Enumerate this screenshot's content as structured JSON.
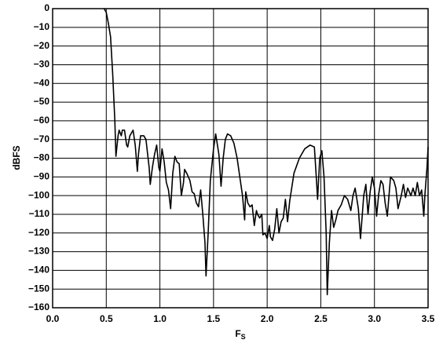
{
  "chart_data": {
    "type": "line",
    "y_label": "dBFS",
    "x_label": {
      "main": "F",
      "sub": "S"
    },
    "color": "#000000",
    "grid": true,
    "xlim": [
      0,
      3.5
    ],
    "ylim": [
      -160,
      0
    ],
    "xticks": [
      {
        "value": 0,
        "label": "0.0"
      },
      0.5,
      {
        "value": 1,
        "label": "1.0"
      },
      1.5,
      {
        "value": 2,
        "label": "2.0"
      },
      2.5,
      {
        "value": 3,
        "label": "3.0"
      },
      3.5
    ],
    "yticks": [
      0,
      {
        "value": -10,
        "label": "−10"
      },
      {
        "value": -20,
        "label": "−20"
      },
      {
        "value": -30,
        "label": "−30"
      },
      {
        "value": -40,
        "label": "−40"
      },
      {
        "value": -50,
        "label": "−50"
      },
      {
        "value": -60,
        "label": "−60"
      },
      {
        "value": -70,
        "label": "−70"
      },
      {
        "value": -80,
        "label": "−80"
      },
      {
        "value": -90,
        "label": "−90"
      },
      {
        "value": -100,
        "label": "−100"
      },
      {
        "value": -110,
        "label": "−110"
      },
      {
        "value": -120,
        "label": "−120"
      },
      {
        "value": -130,
        "label": "−130"
      },
      {
        "value": -140,
        "label": "−140"
      },
      {
        "value": -150,
        "label": "−150"
      },
      {
        "value": -160,
        "label": "−160"
      }
    ],
    "x": [
      0.48,
      0.5,
      0.52,
      0.54,
      0.56,
      0.58,
      0.59,
      0.61,
      0.62,
      0.64,
      0.65,
      0.67,
      0.69,
      0.7,
      0.72,
      0.75,
      0.77,
      0.79,
      0.8,
      0.82,
      0.85,
      0.87,
      0.9,
      0.91,
      0.93,
      0.95,
      0.97,
      0.99,
      1.0,
      1.02,
      1.04,
      1.06,
      1.08,
      1.1,
      1.12,
      1.14,
      1.16,
      1.18,
      1.2,
      1.22,
      1.23,
      1.25,
      1.28,
      1.3,
      1.32,
      1.34,
      1.36,
      1.38,
      1.4,
      1.42,
      1.43,
      1.45,
      1.47,
      1.5,
      1.52,
      1.55,
      1.57,
      1.59,
      1.61,
      1.63,
      1.66,
      1.69,
      1.72,
      1.75,
      1.77,
      1.79,
      1.8,
      1.82,
      1.84,
      1.86,
      1.88,
      1.9,
      1.91,
      1.93,
      1.95,
      1.96,
      1.98,
      2.0,
      2.02,
      2.03,
      2.05,
      2.07,
      2.09,
      2.11,
      2.13,
      2.15,
      2.17,
      2.19,
      2.21,
      2.25,
      2.3,
      2.35,
      2.4,
      2.44,
      2.46,
      2.47,
      2.49,
      2.51,
      2.53,
      2.55,
      2.56,
      2.58,
      2.6,
      2.62,
      2.64,
      2.66,
      2.69,
      2.72,
      2.75,
      2.78,
      2.8,
      2.82,
      2.85,
      2.87,
      2.9,
      2.92,
      2.94,
      2.96,
      2.98,
      3.0,
      3.02,
      3.04,
      3.06,
      3.08,
      3.1,
      3.12,
      3.15,
      3.18,
      3.2,
      3.22,
      3.25,
      3.27,
      3.29,
      3.31,
      3.34,
      3.36,
      3.38,
      3.4,
      3.42,
      3.44,
      3.46,
      3.47,
      3.49,
      3.5
    ],
    "values": [
      0,
      -2,
      -8,
      -15,
      -35,
      -60,
      -79,
      -68,
      -65,
      -68,
      -65,
      -65,
      -73,
      -74,
      -68,
      -65,
      -73,
      -87,
      -78,
      -68,
      -68,
      -70,
      -85,
      -94,
      -85,
      -78,
      -73,
      -85,
      -87,
      -75,
      -82,
      -93,
      -97,
      -107,
      -88,
      -79,
      -82,
      -83,
      -100,
      -93,
      -86,
      -88,
      -92,
      -98,
      -99,
      -104,
      -106,
      -97,
      -110,
      -125,
      -143,
      -120,
      -92,
      -75,
      -67,
      -78,
      -95,
      -80,
      -70,
      -67,
      -68,
      -72,
      -80,
      -92,
      -100,
      -113,
      -98,
      -104,
      -106,
      -105,
      -116,
      -108,
      -110,
      -112,
      -110,
      -121,
      -120,
      -123,
      -116,
      -122,
      -124,
      -118,
      -107,
      -120,
      -114,
      -112,
      -102,
      -114,
      -103,
      -88,
      -80,
      -75,
      -73,
      -74,
      -92,
      -102,
      -80,
      -76,
      -90,
      -120,
      -153,
      -125,
      -108,
      -117,
      -113,
      -108,
      -105,
      -100,
      -102,
      -108,
      -100,
      -96,
      -107,
      -123,
      -100,
      -94,
      -110,
      -98,
      -90,
      -96,
      -111,
      -99,
      -92,
      -94,
      -104,
      -111,
      -90,
      -92,
      -96,
      -107,
      -100,
      -94,
      -101,
      -96,
      -100,
      -96,
      -100,
      -93,
      -100,
      -97,
      -111,
      -100,
      -85,
      -74
    ]
  }
}
